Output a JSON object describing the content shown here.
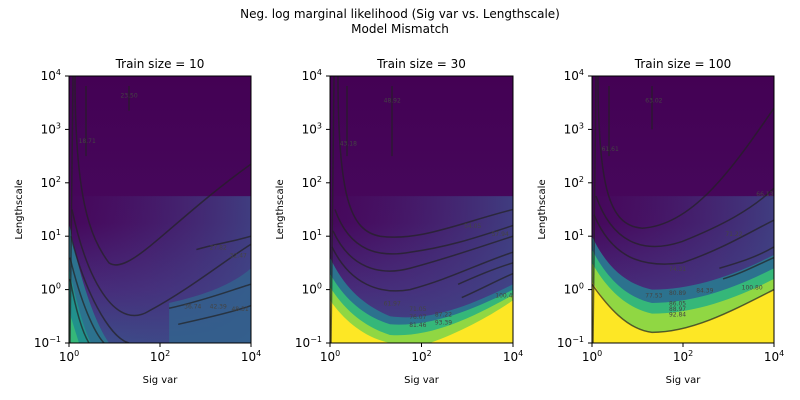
{
  "figure": {
    "title": "Neg. log marginal likelihood (Sig var vs. Lengthscale)",
    "subtitle": "Model Mismatch"
  },
  "chart_data": [
    {
      "type": "heatmap",
      "title": "Train size = 10",
      "xlabel": "Sig var",
      "ylabel": "Lengthscale",
      "xscale": "log",
      "yscale": "log",
      "xlim": [
        1,
        10000
      ],
      "ylim": [
        0.1,
        10000
      ],
      "xticks": [
        {
          "base": "10",
          "exp": "0"
        },
        {
          "base": "10",
          "exp": "2"
        },
        {
          "base": "10",
          "exp": "4"
        }
      ],
      "yticks": [
        {
          "base": "10",
          "exp": "−1"
        },
        {
          "base": "10",
          "exp": "0"
        },
        {
          "base": "10",
          "exp": "1"
        },
        {
          "base": "10",
          "exp": "2"
        },
        {
          "base": "10",
          "exp": "3"
        },
        {
          "base": "10",
          "exp": "4"
        }
      ],
      "colormap": "viridis",
      "contour_labels": [
        "18.71",
        "23.50",
        "27.82",
        "32.47",
        "36.74",
        "42.39",
        "48.31"
      ]
    },
    {
      "type": "heatmap",
      "title": "Train size = 30",
      "xlabel": "Sig var",
      "ylabel": "Lengthscale",
      "xscale": "log",
      "yscale": "log",
      "xlim": [
        1,
        10000
      ],
      "ylim": [
        0.1,
        10000
      ],
      "xticks": [
        {
          "base": "10",
          "exp": "0"
        },
        {
          "base": "10",
          "exp": "2"
        },
        {
          "base": "10",
          "exp": "4"
        }
      ],
      "yticks": [
        {
          "base": "10",
          "exp": "−1"
        },
        {
          "base": "10",
          "exp": "0"
        },
        {
          "base": "10",
          "exp": "1"
        },
        {
          "base": "10",
          "exp": "2"
        },
        {
          "base": "10",
          "exp": "3"
        },
        {
          "base": "10",
          "exp": "4"
        }
      ],
      "colormap": "viridis",
      "contour_labels": [
        "43.18",
        "48.92",
        "54.05",
        "57.94",
        "61.97",
        "71.05",
        "76.07",
        "81.46",
        "87.22",
        "93.39",
        "100.4"
      ]
    },
    {
      "type": "heatmap",
      "title": "Train size = 100",
      "xlabel": "Sig var",
      "ylabel": "Lengthscale",
      "xscale": "log",
      "yscale": "log",
      "xlim": [
        1,
        10000
      ],
      "ylim": [
        0.1,
        10000
      ],
      "xticks": [
        {
          "base": "10",
          "exp": "0"
        },
        {
          "base": "10",
          "exp": "2"
        },
        {
          "base": "10",
          "exp": "4"
        }
      ],
      "yticks": [
        {
          "base": "10",
          "exp": "−1"
        },
        {
          "base": "10",
          "exp": "0"
        },
        {
          "base": "10",
          "exp": "1"
        },
        {
          "base": "10",
          "exp": "2"
        },
        {
          "base": "10",
          "exp": "3"
        },
        {
          "base": "10",
          "exp": "4"
        }
      ],
      "colormap": "viridis",
      "contour_labels": [
        "61.61",
        "63.02",
        "66.13",
        "71.22",
        "74.31",
        "77.53",
        "80.89",
        "84.39",
        "86.05",
        "88.97",
        "92.84",
        "100.80"
      ]
    }
  ]
}
